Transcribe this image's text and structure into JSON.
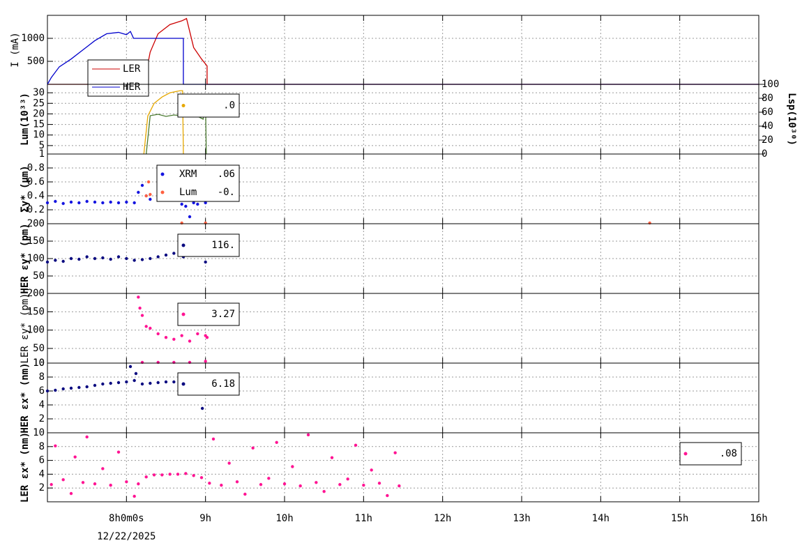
{
  "chart_data": [
    {
      "type": "line",
      "ylabel": "I (mA)",
      "ylim": [
        0,
        1500
      ],
      "yticks": [
        500,
        1000
      ],
      "series": [
        {
          "name": "LER",
          "color": "#cc0000",
          "x": [
            7.0,
            8.22,
            8.3,
            8.4,
            8.55,
            8.7,
            8.76,
            8.85,
            8.95,
            9.02,
            9.02,
            16.0
          ],
          "values": [
            0,
            0,
            700,
            1100,
            1300,
            1380,
            1430,
            800,
            550,
            400,
            0,
            0
          ]
        },
        {
          "name": "HER",
          "color": "#0000cc",
          "x": [
            7.0,
            7.05,
            7.15,
            7.3,
            7.45,
            7.6,
            7.75,
            7.9,
            8.0,
            8.05,
            8.09,
            8.72,
            8.72,
            16.0
          ],
          "values": [
            0,
            150,
            380,
            550,
            750,
            950,
            1100,
            1130,
            1080,
            1150,
            1000,
            1000,
            0,
            0
          ]
        }
      ]
    },
    {
      "type": "line",
      "ylabel": "Lum(10³³)",
      "ylim": [
        1,
        34
      ],
      "yticks": [
        1,
        5,
        10,
        15,
        20,
        25,
        30
      ],
      "y2label": "Lsp(10³⁰)",
      "y2lim": [
        0,
        100
      ],
      "y2ticks": [
        0,
        20,
        40,
        60,
        80,
        100
      ],
      "series": [
        {
          "legend_value": ".0",
          "color": "#e6a800",
          "x": [
            8.22,
            8.27,
            8.35,
            8.45,
            8.55,
            8.68,
            8.71,
            8.72
          ],
          "values": [
            1,
            19,
            25,
            28,
            30,
            31,
            31,
            1
          ]
        },
        {
          "color": "#4a7a30",
          "axis": "y2",
          "x": [
            8.25,
            8.3,
            8.4,
            8.5,
            8.6,
            8.7,
            8.85,
            8.97,
            9.0,
            9.01
          ],
          "values": [
            0,
            55,
            57,
            54,
            56,
            55,
            57,
            50,
            75,
            0
          ]
        }
      ]
    },
    {
      "type": "scatter",
      "ylabel": "Σy* (μm)",
      "ylim": [
        0,
        1
      ],
      "yticks": [
        0.2,
        0.4,
        0.6,
        0.8
      ],
      "series": [
        {
          "name": "XRM",
          "legend_value": ".06",
          "color": "#1515e0",
          "x": [
            7.0,
            7.1,
            7.2,
            7.3,
            7.4,
            7.5,
            7.6,
            7.7,
            7.8,
            7.9,
            8.0,
            8.1,
            8.15,
            8.2,
            8.25,
            8.3,
            8.4,
            8.5,
            8.6,
            8.7,
            8.75,
            8.8,
            8.85,
            8.9,
            9.0
          ],
          "values": [
            0.3,
            0.32,
            0.29,
            0.31,
            0.3,
            0.32,
            0.31,
            0.3,
            0.31,
            0.3,
            0.31,
            0.3,
            0.45,
            0.55,
            0.4,
            0.35,
            0.36,
            0.37,
            0.4,
            0.28,
            0.25,
            0.1,
            0.3,
            0.28,
            0.3
          ]
        },
        {
          "name": "Lum",
          "legend_value": "-0.",
          "color": "#ff6040",
          "x": [
            8.25,
            8.28,
            8.3,
            8.4,
            8.5,
            8.6,
            8.7,
            8.8,
            8.9,
            8.98,
            9.0,
            8.7,
            9.0,
            14.62
          ],
          "values": [
            0.4,
            0.6,
            0.42,
            0.4,
            0.42,
            0.43,
            0.42,
            0.45,
            0.42,
            0.65,
            0.35,
            0.01,
            0.01,
            0.01
          ]
        }
      ]
    },
    {
      "type": "scatter",
      "ylabel": "HER εy* (pm)",
      "ylim": [
        0,
        200
      ],
      "yticks": [
        50,
        100,
        150,
        200
      ],
      "series": [
        {
          "legend_value": "116.",
          "color": "#0a0a80",
          "x": [
            7.0,
            7.1,
            7.2,
            7.3,
            7.4,
            7.5,
            7.6,
            7.7,
            7.8,
            7.9,
            8.0,
            8.1,
            8.2,
            8.3,
            8.4,
            8.5,
            8.6,
            8.7,
            8.72,
            9.0,
            9.0
          ],
          "values": [
            90,
            95,
            92,
            100,
            98,
            105,
            100,
            102,
            98,
            105,
            100,
            95,
            97,
            100,
            105,
            110,
            115,
            120,
            105,
            90,
            110
          ]
        }
      ]
    },
    {
      "type": "scatter",
      "ylabel": "LER εy* (pm)",
      "ylim": [
        10,
        200
      ],
      "yticks": [
        10,
        50,
        100,
        150,
        200
      ],
      "series": [
        {
          "legend_value": "3.27",
          "color": "#ff1493",
          "x": [
            8.15,
            8.17,
            8.2,
            8.25,
            8.3,
            8.4,
            8.5,
            8.6,
            8.7,
            8.8,
            8.9,
            9.0,
            9.02,
            8.2,
            8.4,
            8.6,
            8.8,
            9.0
          ],
          "values": [
            190,
            160,
            140,
            110,
            105,
            90,
            80,
            75,
            85,
            70,
            90,
            85,
            80,
            12,
            12,
            12,
            12,
            15
          ]
        }
      ]
    },
    {
      "type": "scatter",
      "ylabel": "HER εx* (nm)",
      "ylim": [
        0,
        10
      ],
      "yticks": [
        2,
        4,
        6,
        8,
        10
      ],
      "series": [
        {
          "legend_value": "6.18",
          "color": "#0a0a80",
          "x": [
            7.0,
            7.1,
            7.2,
            7.3,
            7.4,
            7.5,
            7.6,
            7.7,
            7.8,
            7.9,
            8.0,
            8.05,
            8.1,
            8.12,
            8.2,
            8.3,
            8.4,
            8.5,
            8.6,
            8.7,
            8.72,
            8.95,
            8.96,
            9.0
          ],
          "values": [
            6,
            6.1,
            6.3,
            6.4,
            6.5,
            6.6,
            6.8,
            7,
            7.1,
            7.2,
            7.3,
            9.5,
            7.5,
            8.5,
            7,
            7.1,
            7.2,
            7.3,
            7.3,
            7.4,
            7.0,
            6.2,
            3.5,
            6.5
          ]
        }
      ]
    },
    {
      "type": "scatter",
      "ylabel": "LER εx* (nm)",
      "ylim": [
        0,
        10
      ],
      "yticks": [
        2,
        4,
        6,
        8,
        10
      ],
      "xlim": [
        7,
        16
      ],
      "xticks": [
        {
          "value": 8,
          "label": "8h0m0s"
        },
        {
          "value": 9,
          "label": "9h"
        },
        {
          "value": 10,
          "label": "10h"
        },
        {
          "value": 11,
          "label": "11h"
        },
        {
          "value": 12,
          "label": "12h"
        },
        {
          "value": 13,
          "label": "13h"
        },
        {
          "value": 14,
          "label": "14h"
        },
        {
          "value": 15,
          "label": "15h"
        },
        {
          "value": 16,
          "label": "16h"
        }
      ],
      "xlabel": "12/22/2025",
      "series": [
        {
          "legend_value": ".08",
          "color": "#ff1493",
          "x": [
            7.05,
            7.1,
            7.2,
            7.3,
            7.35,
            7.45,
            7.5,
            7.6,
            7.7,
            7.8,
            7.9,
            8.0,
            8.1,
            8.15,
            8.25,
            8.35,
            8.45,
            8.55,
            8.65,
            8.75,
            8.85,
            8.95,
            9.05,
            9.1,
            9.2,
            9.3,
            9.4,
            9.5,
            9.6,
            9.7,
            9.8,
            9.9,
            10.0,
            10.1,
            10.2,
            10.3,
            10.4,
            10.5,
            10.6,
            10.7,
            10.8,
            10.9,
            11.0,
            11.1,
            11.2,
            11.3,
            11.4,
            11.45
          ],
          "values": [
            2.5,
            8.1,
            3.2,
            1.2,
            6.5,
            2.8,
            9.4,
            2.6,
            4.8,
            2.4,
            7.2,
            2.9,
            0.8,
            2.6,
            3.6,
            3.9,
            3.9,
            4.0,
            4.0,
            4.1,
            3.8,
            3.5,
            2.7,
            9.1,
            2.4,
            5.6,
            2.9,
            1.1,
            7.8,
            2.5,
            3.4,
            8.6,
            2.6,
            5.1,
            2.3,
            9.7,
            2.8,
            1.5,
            6.4,
            2.5,
            3.3,
            8.2,
            2.4,
            4.6,
            2.7,
            0.9,
            7.1,
            2.3
          ]
        }
      ]
    }
  ]
}
